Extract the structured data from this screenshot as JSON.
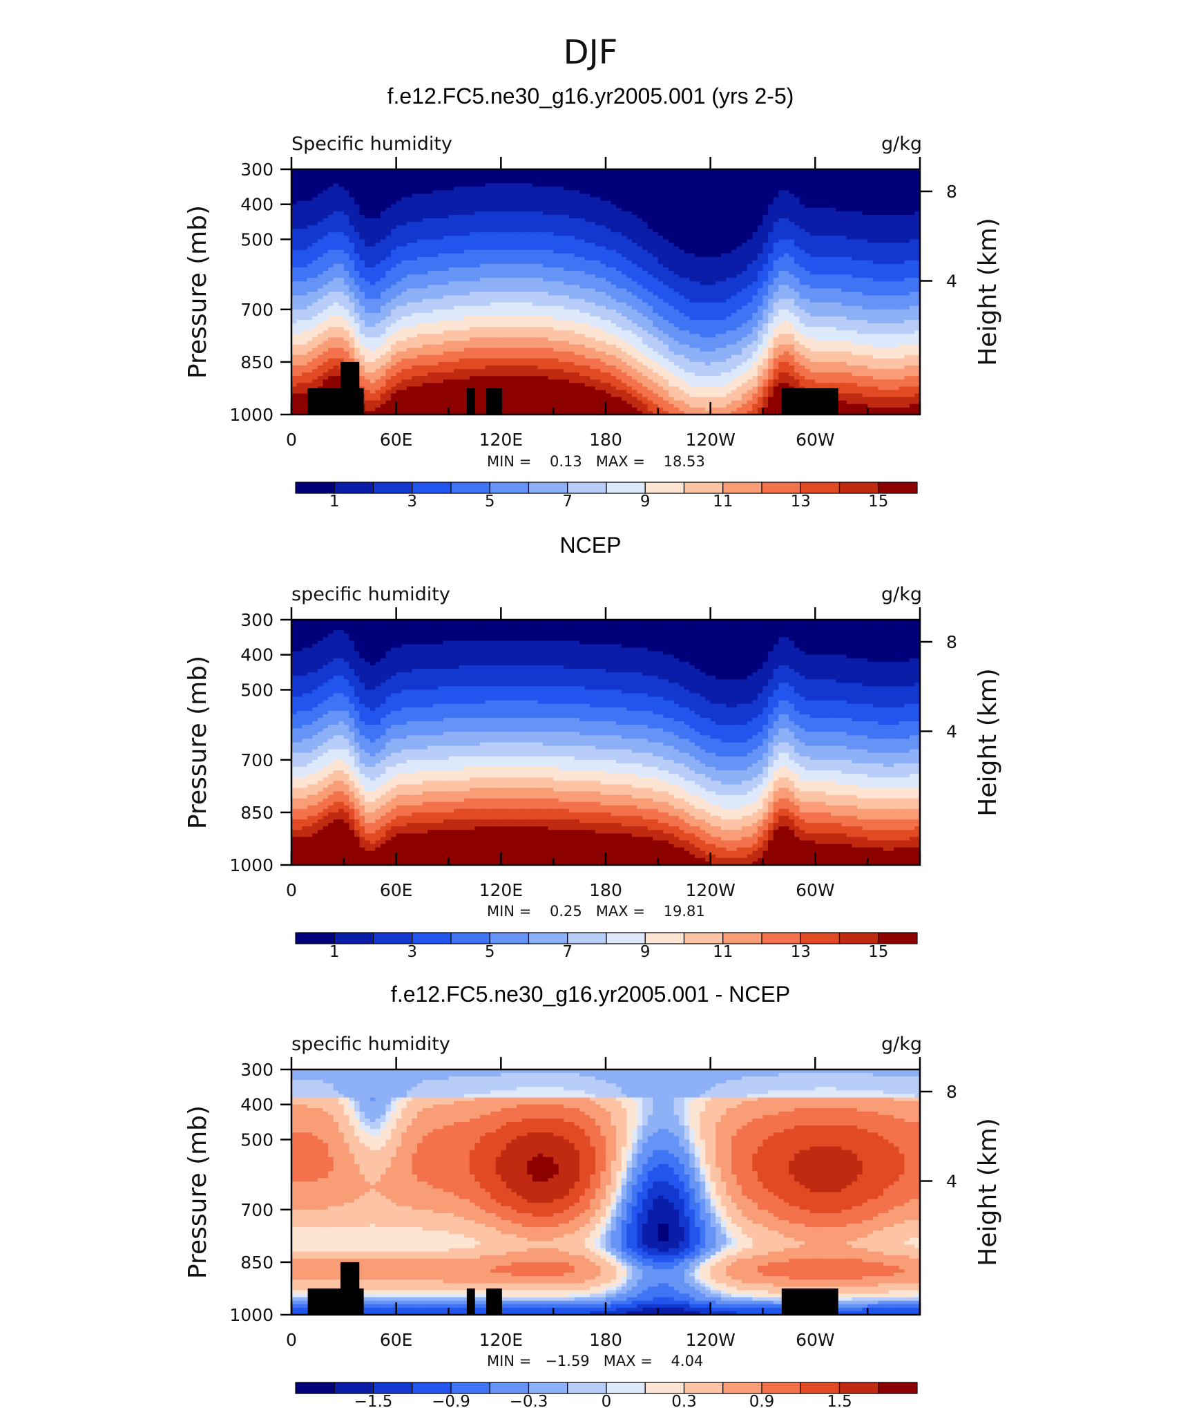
{
  "figure_title": "DJF",
  "panels": [
    {
      "title": "f.e12.FC5.ne30_g16.yr2005.001 (yrs 2-5)",
      "left_label": "Specific humidity",
      "right_label": "g/kg",
      "ylabel": "Pressure (mb)",
      "right_axis_label": "Height (km)",
      "stats": "MIN =    0.13   MAX =    18.53"
    },
    {
      "title": "NCEP",
      "left_label": "specific humidity",
      "right_label": "g/kg",
      "ylabel": "Pressure (mb)",
      "right_axis_label": "Height (km)",
      "stats": "MIN =    0.25   MAX =    19.81"
    },
    {
      "title": "f.e12.FC5.ne30_g16.yr2005.001 - NCEP",
      "left_label": "specific humidity",
      "right_label": "g/kg",
      "ylabel": "Pressure (mb)",
      "right_axis_label": "Height (km)",
      "stats": "MIN =   −1.59   MAX =    4.04"
    }
  ],
  "chart_data": [
    {
      "type": "heatmap",
      "title": "f.e12.FC5.ne30_g16.yr2005.001 (yrs 2-5)",
      "xlabel": "",
      "ylabel": "Pressure (mb)",
      "y2label": "Height (km)",
      "x_ticks": [
        "0",
        "60E",
        "120E",
        "180",
        "120W",
        "60W"
      ],
      "y_ticks": [
        "300",
        "400",
        "500",
        "700",
        "850",
        "1000"
      ],
      "y2_ticks": [
        "8",
        "4"
      ],
      "ylim": [
        1000,
        300
      ],
      "units": "g/kg",
      "min": 0.13,
      "max": 18.53,
      "colorbar_ticks": [
        "1",
        "3",
        "5",
        "7",
        "9",
        "11",
        "13",
        "15"
      ],
      "levels": [
        1,
        2,
        3,
        4,
        5,
        6,
        7,
        8,
        9,
        10,
        11,
        12,
        13,
        14,
        15
      ]
    },
    {
      "type": "heatmap",
      "title": "NCEP",
      "xlabel": "",
      "ylabel": "Pressure (mb)",
      "y2label": "Height (km)",
      "x_ticks": [
        "0",
        "60E",
        "120E",
        "180",
        "120W",
        "60W"
      ],
      "y_ticks": [
        "300",
        "400",
        "500",
        "700",
        "850",
        "1000"
      ],
      "y2_ticks": [
        "8",
        "4"
      ],
      "ylim": [
        1000,
        300
      ],
      "units": "g/kg",
      "min": 0.25,
      "max": 19.81,
      "colorbar_ticks": [
        "1",
        "3",
        "5",
        "7",
        "9",
        "11",
        "13",
        "15"
      ],
      "levels": [
        1,
        2,
        3,
        4,
        5,
        6,
        7,
        8,
        9,
        10,
        11,
        12,
        13,
        14,
        15
      ]
    },
    {
      "type": "heatmap",
      "title": "f.e12.FC5.ne30_g16.yr2005.001 - NCEP",
      "xlabel": "",
      "ylabel": "Pressure (mb)",
      "y2label": "Height (km)",
      "x_ticks": [
        "0",
        "60E",
        "120E",
        "180",
        "120W",
        "60W"
      ],
      "y_ticks": [
        "300",
        "400",
        "500",
        "700",
        "850",
        "1000"
      ],
      "y2_ticks": [
        "8",
        "4"
      ],
      "ylim": [
        1000,
        300
      ],
      "units": "g/kg",
      "min": -1.59,
      "max": 4.04,
      "colorbar_ticks": [
        "−1.5",
        "−0.9",
        "−0.3",
        "0",
        "0.3",
        "0.9",
        "1.5"
      ],
      "levels": [
        -1.8,
        -1.5,
        -1.2,
        -0.9,
        -0.6,
        -0.3,
        -0.1,
        0,
        0.1,
        0.3,
        0.6,
        0.9,
        1.2,
        1.5,
        1.8
      ]
    }
  ],
  "colormap": [
    "#00007a",
    "#0a1da8",
    "#1238d0",
    "#2255ee",
    "#3f74f4",
    "#6593f6",
    "#8eb0f7",
    "#b8cdf8",
    "#dde9fb",
    "#fde4d3",
    "#fcc3a5",
    "#f99d77",
    "#f3724b",
    "#e14a23",
    "#c02a10",
    "#8c0000"
  ]
}
